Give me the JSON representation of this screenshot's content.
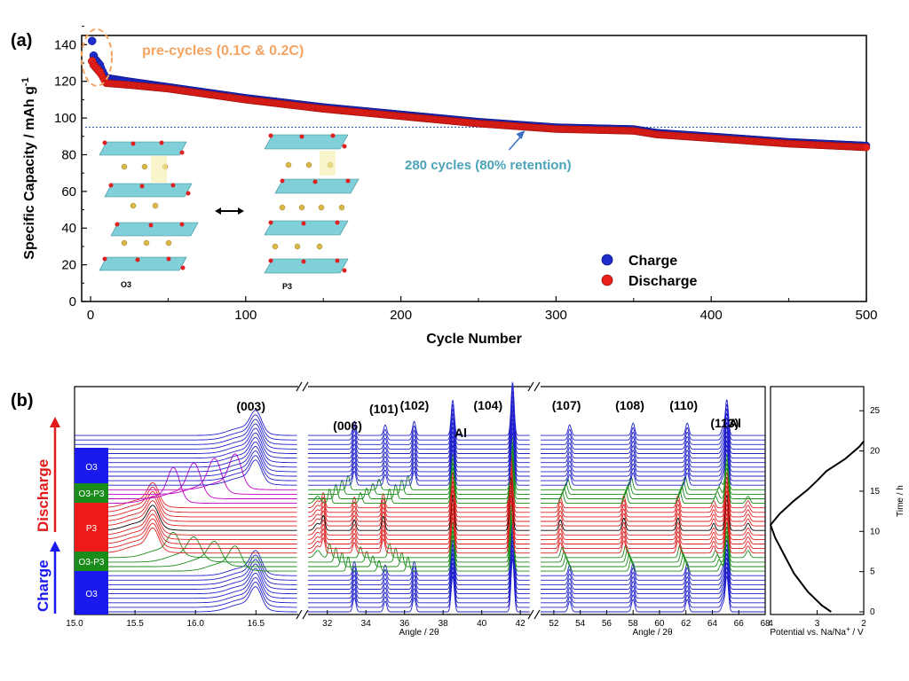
{
  "chart_data": [
    {
      "type": "scatter",
      "panel_label": "(a)",
      "xlabel": "Cycle Number",
      "ylabel": "Specific Capacity / mAh g",
      "ylabel_sup": "-1",
      "xlim": [
        0,
        500
      ],
      "ylim": [
        0,
        145
      ],
      "xticks": [
        "0",
        "100",
        "200",
        "300",
        "400",
        "500"
      ],
      "yticks": [
        "0",
        "20",
        "40",
        "60",
        "80",
        "100",
        "120",
        "140"
      ],
      "legend_position": "bottom-right",
      "series": [
        {
          "name": "Charge",
          "color": "#1f2dcc",
          "x": [
            1,
            2,
            3,
            4,
            5,
            6,
            10,
            25,
            50,
            100,
            150,
            200,
            250,
            300,
            350,
            365,
            400,
            450,
            500
          ],
          "y": [
            142,
            134,
            132,
            131,
            130,
            129,
            122,
            120,
            117,
            111,
            106,
            102,
            98,
            95,
            94,
            92,
            90,
            87,
            85
          ]
        },
        {
          "name": "Discharge",
          "color": "#e8201a",
          "x": [
            1,
            2,
            3,
            4,
            5,
            6,
            10,
            25,
            50,
            100,
            150,
            200,
            250,
            300,
            350,
            365,
            400,
            450,
            500
          ],
          "y": [
            131,
            129,
            128,
            127,
            126,
            125,
            119,
            118,
            116,
            110,
            105,
            101,
            97,
            94,
            93,
            91,
            89,
            86,
            84
          ]
        }
      ],
      "reference_line_y": 95,
      "annotations": {
        "pre_cycles": "pre-cycles (0.1C & 0.2C)",
        "retention": "280 cycles (80% retention)",
        "retention_cycle": 280
      },
      "structures": {
        "left": "O3",
        "right": "P3"
      }
    },
    {
      "type": "line",
      "panel_label": "(b)",
      "subpanels": [
        {
          "xlim": [
            15.0,
            16.85
          ],
          "xticks": [
            "15.0",
            "15.5",
            "16.0",
            "16.5"
          ],
          "peaks": [
            {
              "label": "(003)",
              "x": 16.5
            }
          ]
        },
        {
          "xlim": [
            31,
            42.5
          ],
          "xticks": [
            "32",
            "34",
            "36",
            "38",
            "40",
            "42"
          ],
          "xlabel": "Angle / 2θ",
          "peaks": [
            {
              "label": "(006)",
              "x": 33.4
            },
            {
              "label": "(101)",
              "x": 35.0
            },
            {
              "label": "(102)",
              "x": 36.5
            },
            {
              "label": "Al",
              "x": 38.5
            },
            {
              "label": "(104)",
              "x": 41.6
            }
          ]
        },
        {
          "xlim": [
            51,
            68
          ],
          "xticks": [
            "52",
            "54",
            "56",
            "58",
            "60",
            "62",
            "64",
            "66",
            "68"
          ],
          "xlabel": "Angle / 2θ",
          "peaks": [
            {
              "label": "(107)",
              "x": 53.2
            },
            {
              "label": "(108)",
              "x": 58.0
            },
            {
              "label": "(110)",
              "x": 62.1
            },
            {
              "label": "(113)",
              "x": 64.8
            },
            {
              "label": "Al",
              "x": 65.1
            }
          ]
        }
      ],
      "phases": [
        "O3",
        "O3-P3",
        "P3",
        "O3-P3",
        "O3"
      ],
      "process_labels": {
        "charge": "Charge",
        "discharge": "Discharge"
      },
      "potential_profile": {
        "xlabel": "Potential  vs. Na/Na",
        "xlabel_sup": "+",
        "xlabel_unit": " / V",
        "ylabel": "Time / h",
        "xlim": [
          4,
          2
        ],
        "ylim": [
          0,
          28
        ],
        "xticks": [
          "4",
          "3",
          "2"
        ],
        "yticks": [
          "0",
          "5",
          "10",
          "15",
          "20",
          "25"
        ],
        "potential": [
          2.7,
          2.9,
          3.2,
          3.5,
          3.7,
          3.9,
          4.0,
          3.8,
          3.5,
          3.2,
          3.0,
          2.8,
          2.4,
          2.1,
          2.0
        ],
        "time": [
          0,
          0.8,
          2.5,
          4.8,
          7.0,
          9.2,
          10.8,
          12.2,
          13.8,
          15.2,
          16.3,
          17.5,
          19.0,
          20.5,
          21.2
        ]
      },
      "trace_colors": {
        "O3": "#2222cc",
        "O3-P3": "#1a8c1a",
        "P3": "#dd2222",
        "transition": "#000000",
        "magenta": "#c000c0"
      }
    }
  ]
}
